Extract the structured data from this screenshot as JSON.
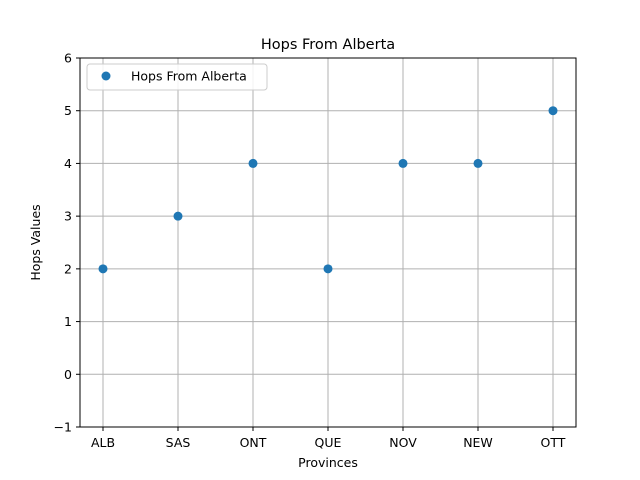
{
  "chart_data": {
    "type": "scatter",
    "title": "Hops From Alberta",
    "xlabel": "Provinces",
    "ylabel": "Hops Values",
    "categories": [
      "ALB",
      "SAS",
      "ONT",
      "QUE",
      "NOV",
      "NEW",
      "OTT"
    ],
    "series": [
      {
        "name": "Hops From Alberta",
        "color": "#1f77b4",
        "values": [
          2,
          3,
          4,
          2,
          4,
          4,
          5
        ]
      }
    ],
    "ylim": [
      -1,
      6
    ],
    "yticks": [
      -1,
      0,
      1,
      2,
      3,
      4,
      5,
      6
    ],
    "grid": true,
    "legend_position": "top-left"
  }
}
